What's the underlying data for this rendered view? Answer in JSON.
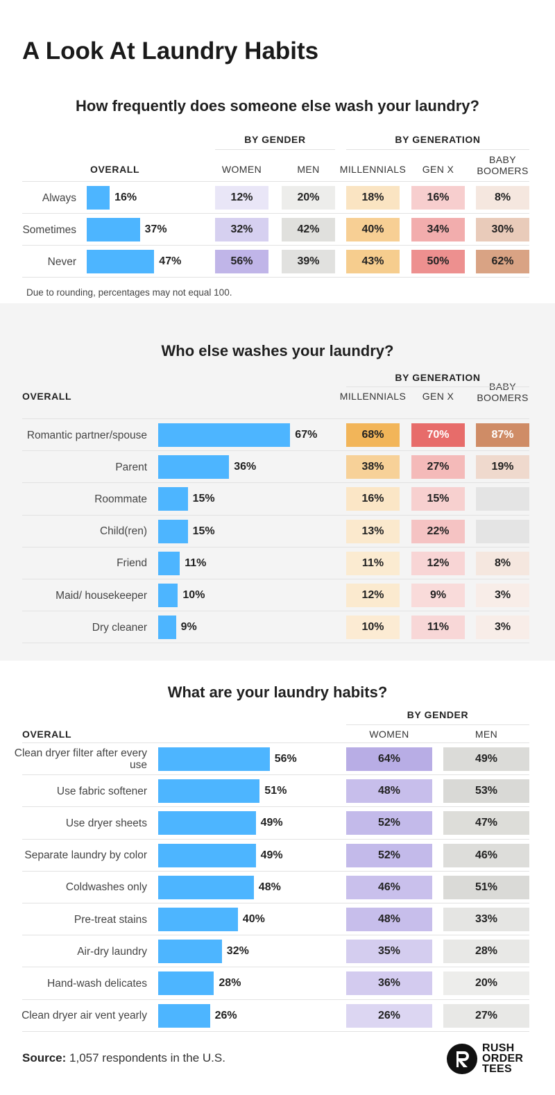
{
  "title": "A Look At Laundry Habits",
  "chart_data": [
    {
      "type": "table",
      "title": "How frequently does someone else wash your laundry?",
      "overall_label": "OVERALL",
      "groups": [
        {
          "name": "BY GENDER",
          "columns": [
            "WOMEN",
            "MEN"
          ]
        },
        {
          "name": "BY GENERATION",
          "columns": [
            "MILLENNIALS",
            "GEN X",
            "BABY BOOMERS"
          ]
        }
      ],
      "categories": [
        "Always",
        "Sometimes",
        "Never"
      ],
      "overall": [
        16,
        37,
        47
      ],
      "series": [
        {
          "name": "WOMEN",
          "values": [
            12,
            32,
            56
          ]
        },
        {
          "name": "MEN",
          "values": [
            20,
            42,
            39
          ]
        },
        {
          "name": "MILLENNIALS",
          "values": [
            18,
            40,
            43
          ]
        },
        {
          "name": "GEN X",
          "values": [
            16,
            34,
            50
          ]
        },
        {
          "name": "BABY BOOMERS",
          "values": [
            8,
            30,
            62
          ]
        }
      ],
      "note": "Due to rounding, percentages may not equal 100."
    },
    {
      "type": "table",
      "title": "Who else washes your laundry?",
      "overall_label": "OVERALL",
      "groups": [
        {
          "name": "BY GENERATION",
          "columns": [
            "MILLENNIALS",
            "GEN X",
            "BABY BOOMERS"
          ]
        }
      ],
      "categories": [
        "Romantic partner/spouse",
        "Parent",
        "Roommate",
        "Child(ren)",
        "Friend",
        "Maid/ housekeeper",
        "Dry cleaner"
      ],
      "overall": [
        67,
        36,
        15,
        15,
        11,
        10,
        9
      ],
      "series": [
        {
          "name": "MILLENNIALS",
          "values": [
            68,
            38,
            16,
            13,
            11,
            12,
            10
          ]
        },
        {
          "name": "GEN X",
          "values": [
            70,
            27,
            15,
            22,
            12,
            9,
            11
          ]
        },
        {
          "name": "BABY BOOMERS",
          "values": [
            87,
            19,
            null,
            null,
            8,
            3,
            3
          ]
        }
      ]
    },
    {
      "type": "table",
      "title": "What are your laundry habits?",
      "overall_label": "OVERALL",
      "groups": [
        {
          "name": "BY GENDER",
          "columns": [
            "WOMEN",
            "MEN"
          ]
        }
      ],
      "categories": [
        "Clean dryer filter after every use",
        "Use fabric softener",
        "Use dryer sheets",
        "Separate laundry by color",
        "Coldwashes only",
        "Pre-treat stains",
        "Air-dry laundry",
        "Hand-wash delicates",
        "Clean dryer air vent yearly"
      ],
      "overall": [
        56,
        51,
        49,
        49,
        48,
        40,
        32,
        28,
        26
      ],
      "series": [
        {
          "name": "WOMEN",
          "values": [
            64,
            48,
            52,
            52,
            46,
            48,
            35,
            36,
            26
          ]
        },
        {
          "name": "MEN",
          "values": [
            49,
            53,
            47,
            46,
            51,
            33,
            28,
            20,
            27
          ]
        }
      ]
    }
  ],
  "colors": {
    "bar": "#4db5ff",
    "WOMEN": "#a99be0",
    "MEN": "#c9c9c4",
    "MILLENNIALS": "#f0aa40",
    "GEN X": "#e45a58",
    "BABY BOOMERS": "#cf8c66",
    "empty": "#e4e4e4"
  },
  "footer": {
    "source_label": "Source:",
    "source_text": "1,057 respondents in the U.S.",
    "logo_lines": [
      "RUSH",
      "ORDER",
      "TEES"
    ]
  }
}
